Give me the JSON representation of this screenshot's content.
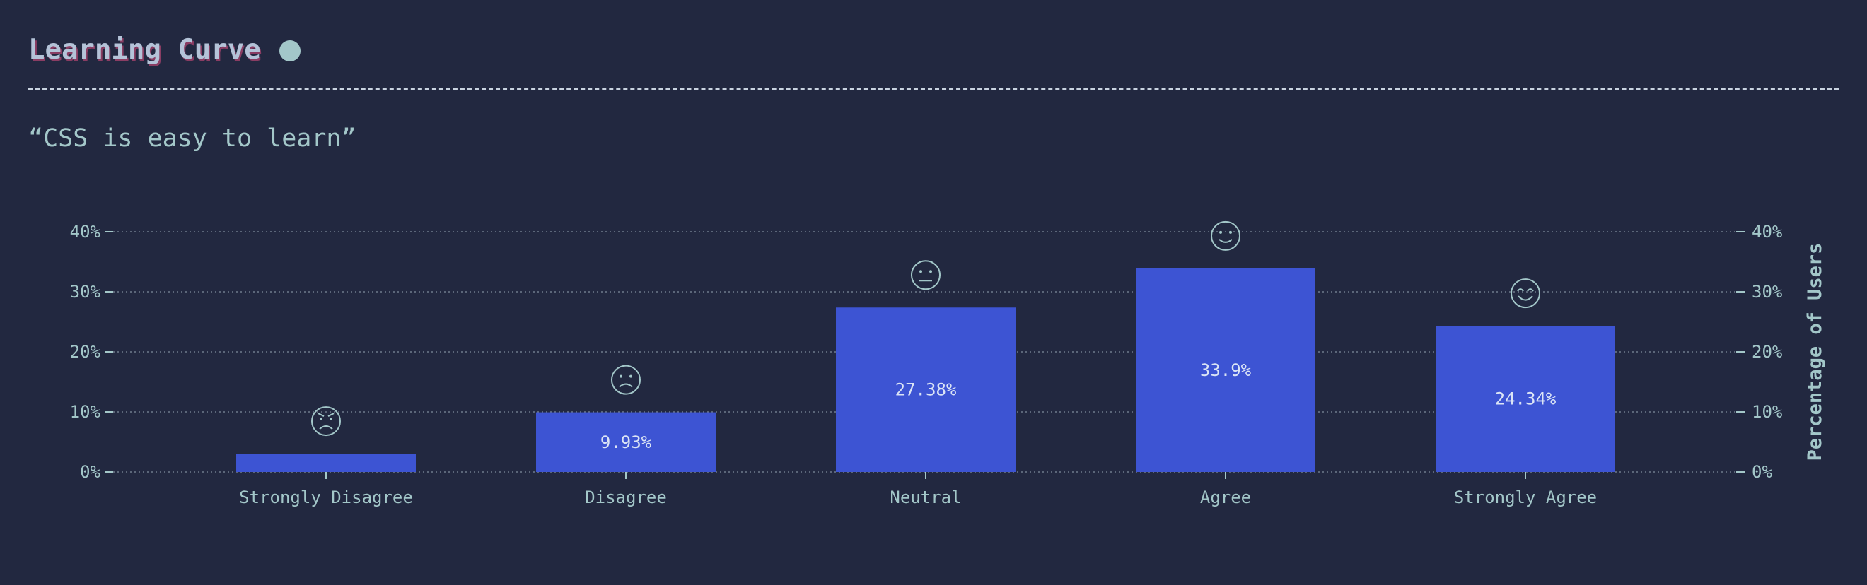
{
  "header": {
    "title": "Learning Curve"
  },
  "question": "“CSS is easy to learn”",
  "colors": {
    "background": "#222840",
    "bar": "#3d54d3",
    "text": "#a3c7c9",
    "grid": "#6e7a8c"
  },
  "chart_data": {
    "type": "bar",
    "categories": [
      "Strongly Disagree",
      "Disagree",
      "Neutral",
      "Agree",
      "Strongly Agree"
    ],
    "values": [
      3.05,
      9.93,
      27.38,
      33.9,
      24.34
    ],
    "data_labels": [
      "",
      "9.93%",
      "27.38%",
      "33.9%",
      "24.34%"
    ],
    "icons": [
      "angry-face-icon",
      "frowning-face-icon",
      "neutral-face-icon",
      "smiling-face-icon",
      "happy-face-icon"
    ],
    "ylim": [
      0,
      40
    ],
    "yticks": [
      0,
      10,
      20,
      30,
      40
    ],
    "ytick_labels": [
      "0%",
      "10%",
      "20%",
      "30%",
      "40%"
    ],
    "ylabel": "Percentage of Users",
    "xlabel": "",
    "grid": "horizontal dotted"
  }
}
